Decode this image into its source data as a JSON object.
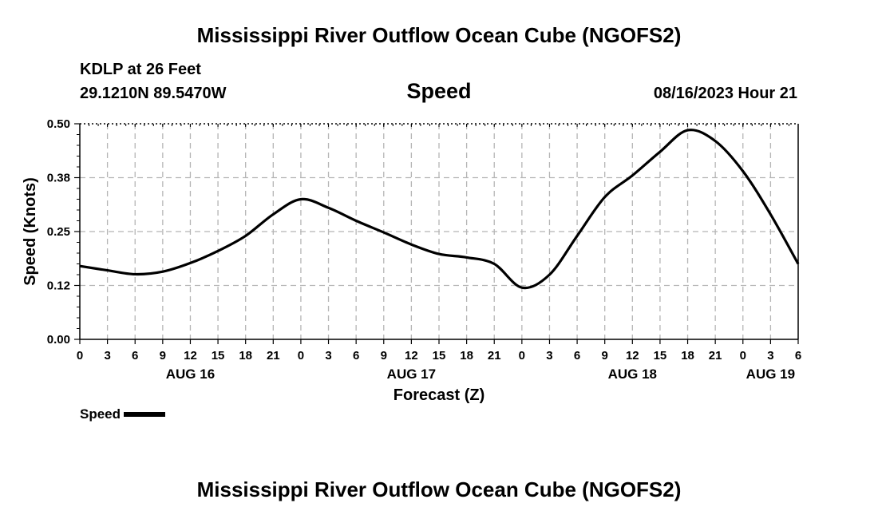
{
  "header": {
    "title": "Mississippi River Outflow Ocean Cube (NGOFS2)",
    "station": "KDLP at 26 Feet",
    "coords": "29.1210N  89.5470W",
    "subtitle": "Speed",
    "timestamp": "08/16/2023 Hour 21"
  },
  "footer": {
    "title": "Mississippi River Outflow Ocean Cube (NGOFS2)"
  },
  "legend": {
    "label": "Speed"
  },
  "chart_data": {
    "type": "line",
    "title": "Speed",
    "xlabel": "Forecast (Z)",
    "ylabel": "Speed (Knots)",
    "ylim": [
      0,
      0.5
    ],
    "xlim": [
      0,
      78
    ],
    "y_ticks": [
      "0.00",
      "0.12",
      "0.25",
      "0.38",
      "0.50"
    ],
    "y_tick_values": [
      0,
      0.125,
      0.25,
      0.375,
      0.5
    ],
    "x_ticks": [
      {
        "h": 0,
        "label": "0"
      },
      {
        "h": 3,
        "label": "3"
      },
      {
        "h": 6,
        "label": "6"
      },
      {
        "h": 9,
        "label": "9"
      },
      {
        "h": 12,
        "label": "12"
      },
      {
        "h": 15,
        "label": "15"
      },
      {
        "h": 18,
        "label": "18"
      },
      {
        "h": 21,
        "label": "21"
      },
      {
        "h": 24,
        "label": "0"
      },
      {
        "h": 27,
        "label": "3"
      },
      {
        "h": 30,
        "label": "6"
      },
      {
        "h": 33,
        "label": "9"
      },
      {
        "h": 36,
        "label": "12"
      },
      {
        "h": 39,
        "label": "15"
      },
      {
        "h": 42,
        "label": "18"
      },
      {
        "h": 45,
        "label": "21"
      },
      {
        "h": 48,
        "label": "0"
      },
      {
        "h": 51,
        "label": "3"
      },
      {
        "h": 54,
        "label": "6"
      },
      {
        "h": 57,
        "label": "9"
      },
      {
        "h": 60,
        "label": "12"
      },
      {
        "h": 63,
        "label": "15"
      },
      {
        "h": 66,
        "label": "18"
      },
      {
        "h": 69,
        "label": "21"
      },
      {
        "h": 72,
        "label": "0"
      },
      {
        "h": 75,
        "label": "3"
      },
      {
        "h": 78,
        "label": "6"
      }
    ],
    "date_labels": [
      {
        "h": 12,
        "label": "AUG 16"
      },
      {
        "h": 36,
        "label": "AUG 17"
      },
      {
        "h": 60,
        "label": "AUG 18"
      },
      {
        "h": 75,
        "label": "AUG 19"
      }
    ],
    "grid": true,
    "legend_position": "bottom-left",
    "series": [
      {
        "name": "Speed",
        "color": "#000000",
        "x": [
          0,
          3,
          6,
          9,
          12,
          15,
          18,
          21,
          24,
          27,
          30,
          33,
          36,
          39,
          42,
          45,
          48,
          51,
          54,
          57,
          60,
          63,
          66,
          69,
          72,
          75,
          78
        ],
        "values": [
          0.17,
          0.16,
          0.151,
          0.157,
          0.177,
          0.205,
          0.24,
          0.29,
          0.325,
          0.305,
          0.275,
          0.248,
          0.22,
          0.198,
          0.19,
          0.175,
          0.12,
          0.15,
          0.24,
          0.33,
          0.38,
          0.435,
          0.485,
          0.46,
          0.39,
          0.29,
          0.175
        ]
      }
    ]
  }
}
